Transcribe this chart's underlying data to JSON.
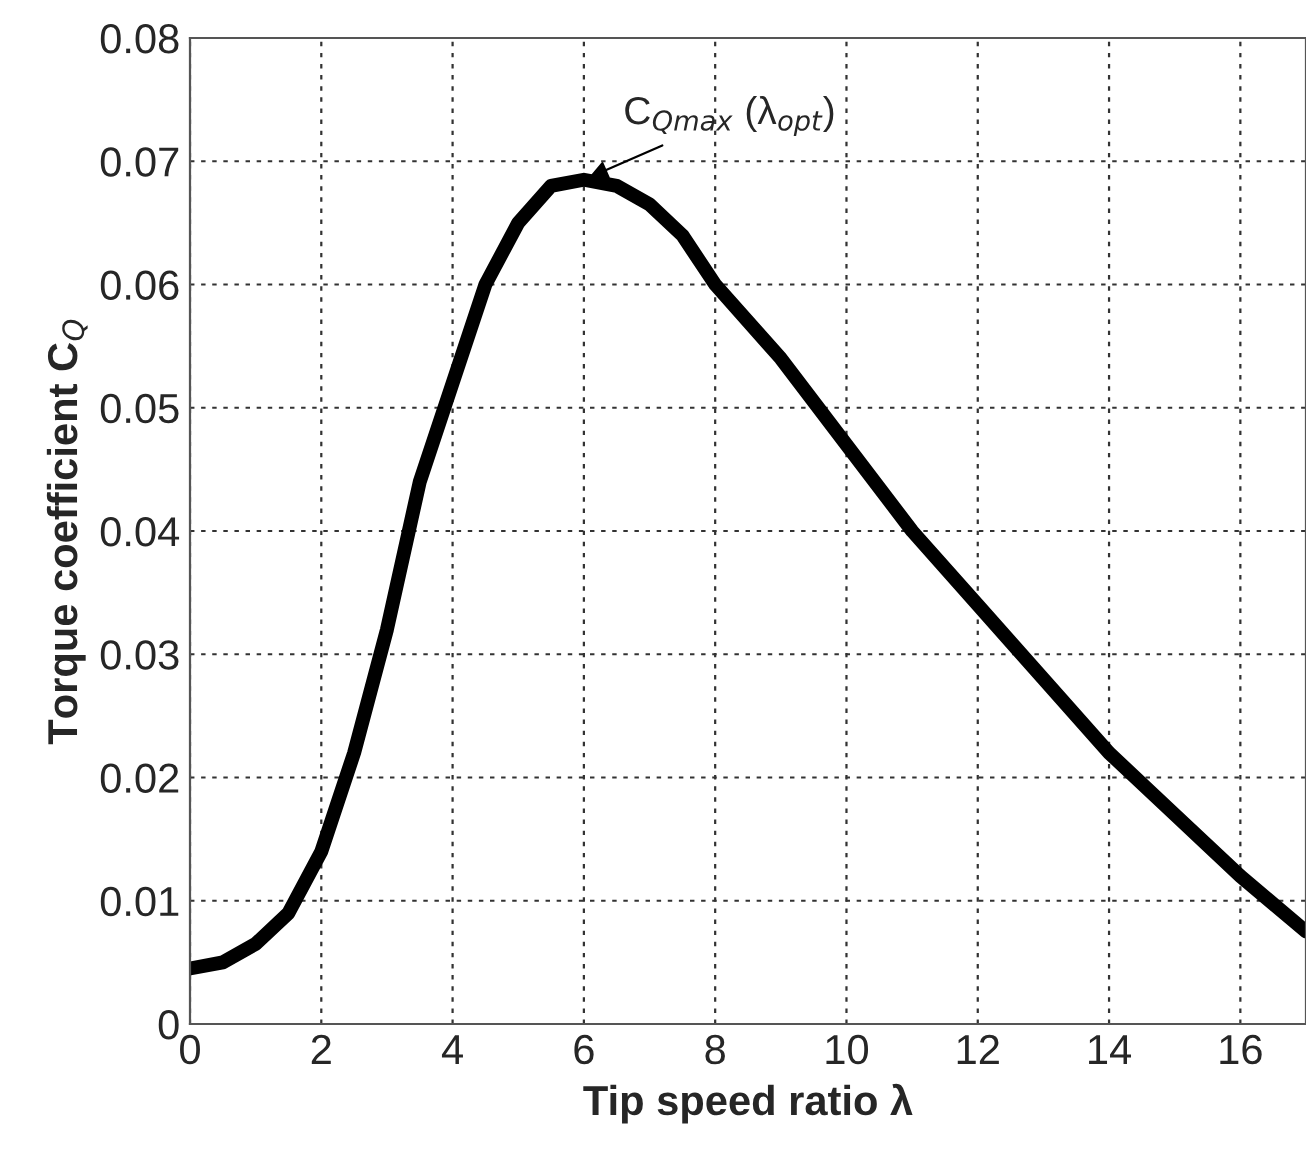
{
  "chart_data": {
    "type": "line",
    "xlabel": "Tip speed ratio λ",
    "ylabel": "Torque coefficient C$_{Q}$",
    "x": [
      0,
      0.5,
      1,
      1.5,
      2,
      2.5,
      3,
      3.5,
      4,
      4.5,
      5,
      5.5,
      6,
      6.5,
      7,
      7.5,
      8,
      9,
      10,
      11,
      12,
      13,
      14,
      15,
      16,
      17
    ],
    "series": [
      {
        "color": "#000000",
        "values": [
          0.0045,
          0.005,
          0.0065,
          0.009,
          0.014,
          0.022,
          0.032,
          0.044,
          0.052,
          0.06,
          0.065,
          0.068,
          0.0685,
          0.068,
          0.0665,
          0.064,
          0.06,
          0.054,
          0.047,
          0.04,
          0.034,
          0.028,
          0.022,
          0.017,
          0.012,
          0.0075
        ]
      }
    ],
    "annotations": [
      {
        "text": "C$_{Qmax}$ (λ$_{opt}$)",
        "x": 6,
        "y": 0.0685
      }
    ],
    "xlim": [
      0,
      17
    ],
    "ylim": [
      0,
      0.08
    ],
    "xticks": [
      0,
      2,
      4,
      6,
      8,
      10,
      12,
      14,
      16
    ],
    "yticks": [
      0,
      0.01,
      0.02,
      0.03,
      0.04,
      0.05,
      0.06,
      0.07,
      0.08
    ],
    "grid": true,
    "line_style": "solid",
    "marker": "none"
  }
}
